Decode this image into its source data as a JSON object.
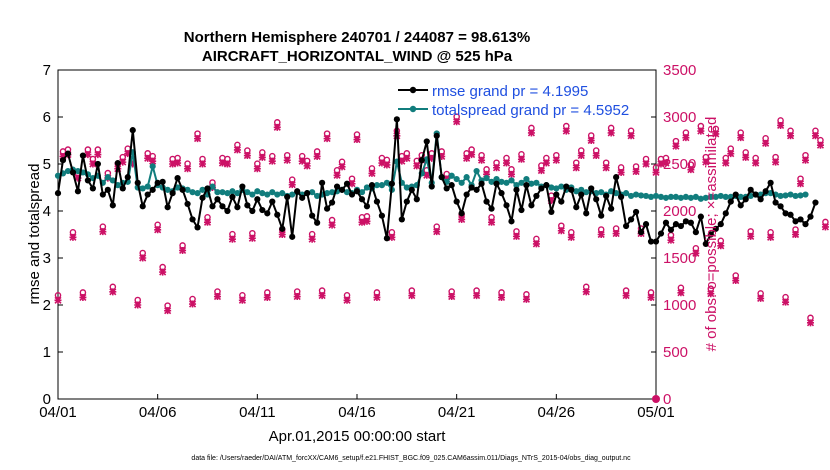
{
  "chart_data": {
    "type": "line",
    "title_line1": "Northern Hemisphere 240701 / 244087 = 98.613%",
    "title_line2": "AIRCRAFT_HORIZONTAL_WIND @ 525 hPa",
    "xlabel": "Apr.01,2015 00:00:00 start",
    "ylabel": "rmse and totalspread",
    "ylabel_right": "# of obs: o=possible; ×=assimilated",
    "footnote": "data file: /Users/raeder/DAI/ATM_forcXX/CAM6_setup/f.e21.FHIST_BGC.f09_025.CAM6assim.011/Diags_NTrS_2015-04/obs_diag_output.nc",
    "xlim": [
      0,
      30
    ],
    "ylim": [
      0,
      7
    ],
    "ylim_right": [
      0,
      3500
    ],
    "x_ticks": [
      0,
      5,
      10,
      15,
      20,
      25,
      30
    ],
    "x_tick_labels": [
      "04/01",
      "04/06",
      "04/11",
      "04/16",
      "04/21",
      "04/26",
      "05/01"
    ],
    "y_ticks": [
      0,
      1,
      2,
      3,
      4,
      5,
      6,
      7
    ],
    "y_tick_labels": [
      "0",
      "1",
      "2",
      "3",
      "4",
      "5",
      "6",
      "7"
    ],
    "y_right_ticks": [
      0,
      500,
      1000,
      1500,
      2000,
      2500,
      3000,
      3500
    ],
    "y_right_tick_labels": [
      "0",
      "500",
      "1000",
      "1500",
      "2000",
      "2500",
      "3000",
      "3500"
    ],
    "x_step": 0.25,
    "series": [
      {
        "name": "rmse grand pr = 4.1995",
        "color": "#000000",
        "values": [
          4.38,
          5.08,
          5.22,
          4.82,
          4.42,
          5.18,
          4.65,
          4.48,
          5.0,
          4.35,
          4.45,
          4.12,
          5.02,
          4.48,
          4.72,
          5.72,
          4.6,
          4.1,
          4.35,
          4.45,
          4.6,
          4.62,
          4.08,
          4.38,
          4.7,
          4.45,
          4.15,
          3.82,
          3.65,
          4.28,
          4.48,
          4.1,
          4.25,
          4.1,
          4.0,
          4.3,
          4.08,
          4.52,
          4.12,
          4.0,
          4.25,
          4.02,
          3.95,
          4.2,
          3.92,
          3.62,
          4.3,
          3.45,
          4.42,
          4.28,
          4.38,
          3.9,
          3.75,
          4.6,
          4.05,
          4.18,
          4.52,
          4.45,
          4.58,
          4.35,
          4.42,
          4.25,
          4.1,
          4.55,
          4.2,
          3.9,
          3.42,
          4.58,
          5.95,
          3.82,
          4.2,
          4.45,
          4.25,
          5.08,
          5.48,
          4.52,
          5.6,
          4.72,
          4.48,
          4.55,
          4.2,
          3.95,
          4.35,
          4.5,
          4.45,
          4.58,
          4.2,
          4.05,
          4.58,
          4.38,
          4.12,
          3.78,
          4.45,
          4.02,
          4.55,
          4.12,
          4.32,
          4.48,
          4.55,
          3.98,
          4.35,
          4.2,
          4.52,
          4.45,
          4.08,
          4.35,
          3.95,
          4.48,
          4.25,
          3.9,
          4.32,
          4.05,
          4.72,
          4.3,
          3.68,
          3.82,
          3.98,
          3.55,
          3.72,
          3.35,
          3.35,
          3.52,
          3.75,
          3.6,
          3.72,
          3.68,
          3.78,
          3.75,
          3.55,
          3.88,
          3.3,
          3.5,
          3.62,
          3.72,
          3.95,
          4.2,
          4.35,
          4.12,
          4.25,
          4.45,
          4.35,
          4.25,
          4.42,
          4.6,
          4.18,
          4.1,
          3.95,
          3.92,
          3.78,
          3.82,
          3.72,
          3.88,
          4.18
        ]
      },
      {
        "name": "totalspread grand pr = 4.5952",
        "color": "#117d7d",
        "values": [
          4.75,
          4.8,
          4.85,
          4.88,
          4.85,
          4.82,
          4.78,
          4.7,
          4.75,
          4.6,
          4.72,
          4.65,
          4.55,
          4.6,
          4.62,
          5.25,
          4.5,
          4.48,
          4.52,
          4.95,
          4.55,
          4.5,
          4.45,
          4.42,
          4.5,
          4.48,
          4.45,
          4.4,
          4.38,
          4.45,
          4.35,
          4.52,
          4.4,
          4.4,
          4.38,
          4.42,
          4.38,
          4.45,
          4.4,
          4.35,
          4.42,
          4.38,
          4.35,
          4.4,
          4.35,
          4.38,
          4.32,
          4.35,
          4.4,
          4.35,
          4.38,
          4.4,
          4.32,
          4.35,
          4.38,
          4.4,
          4.42,
          4.45,
          4.4,
          4.38,
          4.45,
          4.4,
          4.5,
          4.48,
          4.55,
          4.55,
          4.6,
          4.45,
          5.05,
          4.6,
          4.5,
          4.52,
          4.55,
          4.8,
          5.1,
          4.6,
          5.65,
          4.72,
          4.62,
          4.75,
          4.68,
          4.6,
          4.72,
          4.55,
          4.85,
          4.65,
          4.7,
          4.62,
          4.68,
          4.62,
          4.6,
          4.65,
          4.55,
          4.6,
          4.68,
          4.58,
          4.6,
          4.52,
          4.55,
          4.5,
          4.48,
          4.52,
          4.45,
          4.5,
          4.42,
          4.45,
          4.4,
          4.42,
          4.38,
          4.4,
          4.35,
          4.42,
          4.38,
          4.35,
          4.38,
          4.32,
          4.35,
          4.33,
          4.32,
          4.3,
          4.32,
          4.3,
          4.28,
          4.3,
          4.3,
          4.28,
          4.3,
          4.28,
          4.3,
          4.26,
          4.28,
          4.3,
          4.3,
          4.32,
          4.3,
          4.3,
          4.32,
          4.3,
          4.3,
          4.32,
          4.35,
          4.35,
          4.38,
          4.38,
          4.35,
          4.32,
          4.33,
          4.35,
          4.32,
          4.33,
          4.35
        ]
      }
    ],
    "obs_count_series": {
      "name": "# of obs",
      "color": "#cc1166",
      "marker_possible": "o",
      "marker_assimilated": "×",
      "values": [
        1050,
        2580,
        2600,
        1720,
        2350,
        1080,
        2600,
        2500,
        2600,
        1780,
        2350,
        1140,
        2450,
        2520,
        2610,
        2500,
        1000,
        1500,
        2560,
        2530,
        1800,
        1350,
        940,
        2500,
        2510,
        1580,
        2450,
        1010,
        2770,
        2500,
        1880,
        2250,
        1090,
        2510,
        2500,
        1700,
        2650,
        1050,
        2590,
        1710,
        2450,
        2570,
        1080,
        2530,
        2890,
        1750,
        2540,
        2280,
        1090,
        2530,
        2480,
        1700,
        2580,
        1100,
        2770,
        1850,
        2380,
        2470,
        1050,
        2290,
        2760,
        1880,
        1890,
        2400,
        1080,
        2510,
        2490,
        1720,
        2800,
        2530,
        2560,
        1100,
        2480,
        2540,
        2380,
        2560,
        1780,
        2580,
        2340,
        1090,
        2950,
        1910,
        2560,
        2600,
        1100,
        2540,
        2390,
        1880,
        2460,
        1080,
        2510,
        2390,
        1730,
        2550,
        1060,
        2830,
        1650,
        2430,
        2510,
        2110,
        2540,
        1790,
        2850,
        1720,
        2460,
        2590,
        1140,
        2750,
        2590,
        1750,
        2460,
        2830,
        1760,
        2410,
        1100,
        2800,
        2420,
        1760,
        2500,
        1080,
        2410,
        2500,
        2510,
        1690,
        2690,
        1130,
        2780,
        2440,
        1550,
        2850,
        2520,
        1120,
        2820,
        1630,
        2510,
        2610,
        1260,
        2780,
        2570,
        1730,
        2510,
        1070,
        2720,
        1720,
        2520,
        2910,
        1030,
        2800,
        1750,
        2290,
        2540,
        810,
        2800,
        2700,
        1830
      ]
    },
    "legend": {
      "rmse": "rmse grand pr = 4.1995",
      "spread": "totalspread grand pr = 4.5952"
    }
  }
}
